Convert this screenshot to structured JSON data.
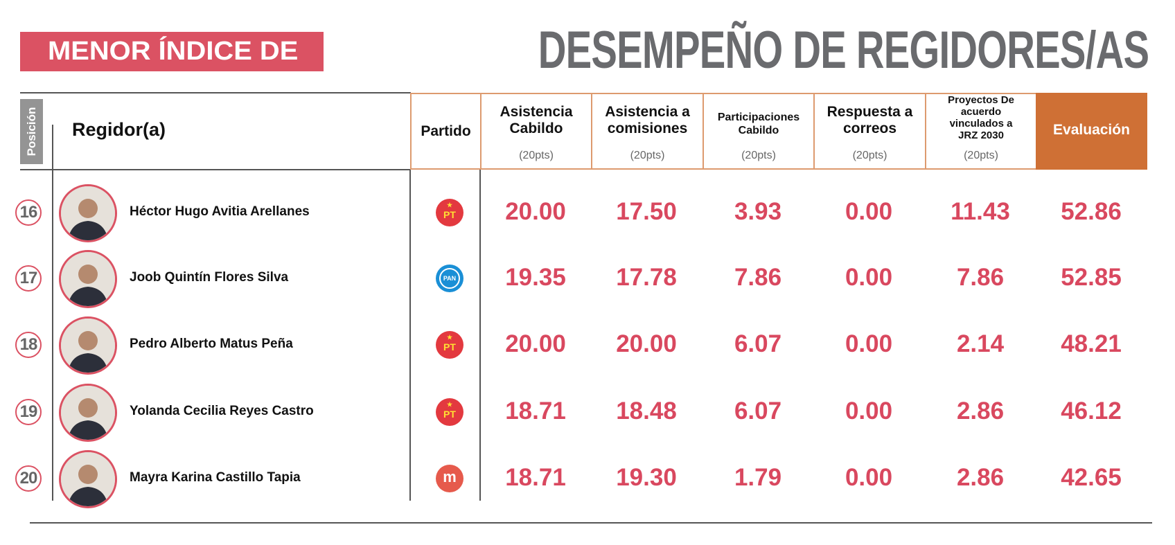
{
  "header": {
    "banner": "MENOR ÍNDICE DE",
    "title": "DESEMPEÑO DE REGIDORES/AS"
  },
  "columns": {
    "position": "Posición",
    "regidor": "Regidor(a)",
    "partido": "Partido",
    "asistencia_cabildo": "Asistencia Cabildo",
    "asistencia_comisiones": "Asistencia a comisiones",
    "participaciones": "Participaciones Cabildo",
    "respuesta": "Respuesta a correos",
    "proyectos": "Proyectos De acuerdo vinculados a JRZ 2030",
    "evaluacion": "Evaluación",
    "pts": "(20pts)"
  },
  "colors": {
    "accent_red": "#db5263",
    "evaluation_orange": "#cf7035",
    "title_gray": "#6a6b6e",
    "value_red": "#d9485f"
  },
  "rows": [
    {
      "position": "16",
      "name": "Héctor Hugo Avitia Arellanes",
      "party": "PT",
      "party_icon": "pt-logo-icon",
      "values": [
        "20.00",
        "17.50",
        "3.93",
        "0.00",
        "11.43",
        "52.86"
      ]
    },
    {
      "position": "17",
      "name": "Joob Quintín Flores Silva",
      "party": "PAN",
      "party_icon": "pan-logo-icon",
      "values": [
        "19.35",
        "17.78",
        "7.86",
        "0.00",
        "7.86",
        "52.85"
      ]
    },
    {
      "position": "18",
      "name": "Pedro Alberto Matus Peña",
      "party": "PT",
      "party_icon": "pt-logo-icon",
      "values": [
        "20.00",
        "20.00",
        "6.07",
        "0.00",
        "2.14",
        "48.21"
      ]
    },
    {
      "position": "19",
      "name": "Yolanda Cecilia Reyes Castro",
      "party": "PT",
      "party_icon": "pt-logo-icon",
      "values": [
        "18.71",
        "18.48",
        "6.07",
        "0.00",
        "2.86",
        "46.12"
      ]
    },
    {
      "position": "20",
      "name": "Mayra Karina Castillo Tapia",
      "party": "m",
      "party_icon": "morena-logo-icon",
      "values": [
        "18.71",
        "19.30",
        "1.79",
        "0.00",
        "2.86",
        "42.65"
      ]
    }
  ]
}
